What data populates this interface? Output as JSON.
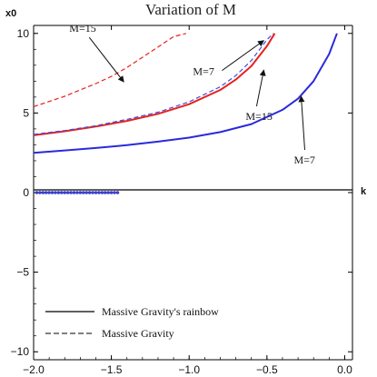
{
  "chart_data": {
    "type": "line",
    "title": "Variation of M",
    "xlabel": "k",
    "ylabel": "x0",
    "xlim": [
      -2.0,
      0.05
    ],
    "ylim": [
      -10.5,
      10.5
    ],
    "x_ticks": [
      "−2.0",
      "−1.5",
      "−1.0",
      "−0.5",
      "0.0"
    ],
    "x_tick_values": [
      -2.0,
      -1.5,
      -1.0,
      -0.5,
      0.0
    ],
    "y_ticks": [
      "10",
      "5",
      "0",
      "−5",
      "−10"
    ],
    "y_tick_values": [
      10,
      5,
      0,
      -5,
      -10
    ],
    "grid": false,
    "legend": {
      "position": "bottom-left",
      "entries": [
        {
          "label": "Massive Gravity's rainbow",
          "style": "solid"
        },
        {
          "label": "Massive Gravity",
          "style": "dashed"
        }
      ]
    },
    "series": [
      {
        "color": "#2a2adc",
        "style": "solid",
        "x": [
          -2.0,
          -1.8,
          -1.6,
          -1.4,
          -1.2,
          -1.0,
          -0.8,
          -0.6,
          -0.4,
          -0.3,
          -0.2,
          -0.1,
          -0.05
        ],
        "y": [
          2.5,
          2.65,
          2.8,
          2.98,
          3.2,
          3.45,
          3.8,
          4.3,
          5.2,
          5.9,
          7.0,
          8.7,
          10.0
        ]
      },
      {
        "color": "#e8201e",
        "style": "solid",
        "x": [
          -2.0,
          -1.8,
          -1.6,
          -1.4,
          -1.2,
          -1.0,
          -0.8,
          -0.7,
          -0.6,
          -0.5,
          -0.45
        ],
        "y": [
          3.6,
          3.85,
          4.15,
          4.5,
          4.95,
          5.55,
          6.45,
          7.1,
          7.95,
          9.2,
          10.0
        ]
      },
      {
        "color": "#3a4fe0",
        "style": "dashed",
        "x": [
          -2.0,
          -1.8,
          -1.6,
          -1.4,
          -1.2,
          -1.0,
          -0.8,
          -0.7,
          -0.6,
          -0.5,
          -0.46
        ],
        "y": [
          3.65,
          3.9,
          4.2,
          4.6,
          5.05,
          5.7,
          6.65,
          7.35,
          8.3,
          9.6,
          10.0
        ]
      },
      {
        "color": "#e8201e",
        "style": "dashed",
        "x": [
          -2.0,
          -1.8,
          -1.6,
          -1.5,
          -1.4,
          -1.3,
          -1.2,
          -1.1,
          -1.02
        ],
        "y": [
          5.4,
          6.05,
          6.85,
          7.3,
          7.85,
          8.5,
          9.15,
          9.8,
          10.0
        ]
      },
      {
        "color": "#3b3bd0",
        "style": "markers",
        "x": [
          -1.98,
          -1.96,
          -1.94,
          -1.92,
          -1.9,
          -1.88,
          -1.86,
          -1.84,
          -1.82,
          -1.8,
          -1.78,
          -1.76,
          -1.74,
          -1.72,
          -1.7,
          -1.68,
          -1.66,
          -1.64,
          -1.62,
          -1.6,
          -1.58,
          -1.56,
          -1.54,
          -1.52,
          -1.5,
          -1.48,
          -1.46
        ],
        "y": [
          0,
          0,
          0,
          0,
          0,
          0,
          0,
          0,
          0,
          0,
          0,
          0,
          0,
          0,
          0,
          0,
          0,
          0,
          0,
          0,
          0,
          0,
          0,
          0,
          0,
          0,
          0
        ]
      }
    ],
    "annotations": [
      {
        "text": "M=15",
        "tip": [
          -1.42,
          6.95
        ]
      },
      {
        "text": "M=7",
        "tip": [
          -0.52,
          9.55
        ]
      },
      {
        "text": "M=15",
        "tip": [
          -0.52,
          7.7
        ]
      },
      {
        "text": "M=7",
        "tip": [
          -0.28,
          6.05
        ]
      }
    ]
  }
}
